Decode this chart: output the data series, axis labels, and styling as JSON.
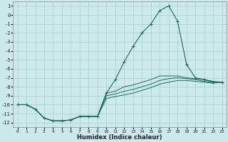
{
  "title": "",
  "xlabel": "Humidex (Indice chaleur)",
  "ylabel": "",
  "background_color": "#cceaea",
  "grid_color": "#aacccc",
  "line_color": "#1a6b5a",
  "marker": "+",
  "xlim": [
    -0.5,
    23.5
  ],
  "ylim": [
    -12.5,
    1.5
  ],
  "xticks": [
    0,
    1,
    2,
    3,
    4,
    5,
    6,
    7,
    8,
    9,
    10,
    11,
    12,
    13,
    14,
    15,
    16,
    17,
    18,
    19,
    20,
    21,
    22,
    23
  ],
  "yticks": [
    1,
    0,
    -1,
    -2,
    -3,
    -4,
    -5,
    -6,
    -7,
    -8,
    -9,
    -10,
    -11,
    -12
  ],
  "series_main": {
    "x": [
      0,
      1,
      2,
      3,
      4,
      5,
      6,
      7,
      8,
      9,
      10,
      11,
      12,
      13,
      14,
      15,
      16,
      17,
      18,
      19,
      20,
      21,
      22,
      23
    ],
    "y": [
      -10,
      -10,
      -10.5,
      -11.5,
      -11.8,
      -11.8,
      -11.7,
      -11.3,
      -11.3,
      -11.3,
      -8.7,
      -7.2,
      -5.2,
      -3.5,
      -2,
      -1,
      0.5,
      1,
      -0.7,
      -5.5,
      -7,
      -7.2,
      -7.5,
      -7.5
    ]
  },
  "series_flat": [
    {
      "x": [
        0,
        1,
        2,
        3,
        4,
        5,
        6,
        7,
        8,
        9,
        10,
        11,
        12,
        13,
        14,
        15,
        16,
        17,
        18,
        19,
        20,
        21,
        22,
        23
      ],
      "y": [
        -10,
        -10,
        -10.5,
        -11.5,
        -11.8,
        -11.8,
        -11.7,
        -11.3,
        -11.3,
        -11.3,
        -8.7,
        -8.5,
        -8.0,
        -7.8,
        -7.5,
        -7.2,
        -6.8,
        -6.8,
        -6.8,
        -7.0,
        -7.1,
        -7.2,
        -7.4,
        -7.5
      ]
    },
    {
      "x": [
        0,
        1,
        2,
        3,
        4,
        5,
        6,
        7,
        8,
        9,
        10,
        11,
        12,
        13,
        14,
        15,
        16,
        17,
        18,
        19,
        20,
        21,
        22,
        23
      ],
      "y": [
        -10,
        -10,
        -10.5,
        -11.5,
        -11.8,
        -11.8,
        -11.7,
        -11.3,
        -11.3,
        -11.3,
        -9.0,
        -8.8,
        -8.5,
        -8.3,
        -8.0,
        -7.7,
        -7.3,
        -7.1,
        -7.0,
        -7.1,
        -7.2,
        -7.4,
        -7.5,
        -7.5
      ]
    },
    {
      "x": [
        0,
        1,
        2,
        3,
        4,
        5,
        6,
        7,
        8,
        9,
        10,
        11,
        12,
        13,
        14,
        15,
        16,
        17,
        18,
        19,
        20,
        21,
        22,
        23
      ],
      "y": [
        -10,
        -10,
        -10.5,
        -11.5,
        -11.8,
        -11.8,
        -11.7,
        -11.3,
        -11.3,
        -11.3,
        -9.3,
        -9.1,
        -8.9,
        -8.7,
        -8.4,
        -8.1,
        -7.7,
        -7.5,
        -7.3,
        -7.3,
        -7.4,
        -7.5,
        -7.6,
        -7.5
      ]
    }
  ]
}
